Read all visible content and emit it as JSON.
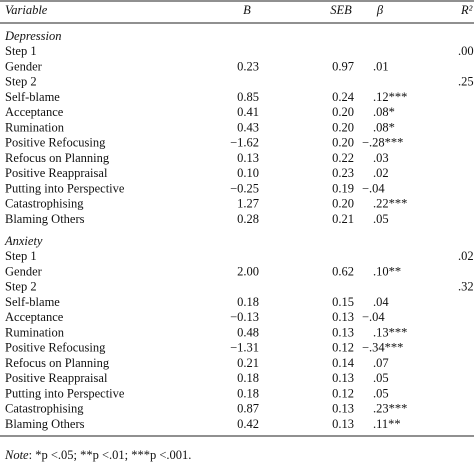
{
  "header": {
    "variable": "Variable",
    "b": "B",
    "seb": "SEB",
    "beta": "β",
    "r2": "R²"
  },
  "sections": [
    {
      "title": "Depression",
      "rows": [
        {
          "variable": "Step 1",
          "r2": ".00"
        },
        {
          "variable": "Gender",
          "b": "0.23",
          "seb": "0.97",
          "beta": ".01"
        },
        {
          "variable": "Step 2",
          "r2": ".25"
        },
        {
          "variable": "Self-blame",
          "b": "0.85",
          "seb": "0.24",
          "beta": ".12***"
        },
        {
          "variable": "Acceptance",
          "b": "0.41",
          "seb": "0.20",
          "beta": ".08*"
        },
        {
          "variable": "Rumination",
          "b": "0.43",
          "seb": "0.20",
          "beta": ".08*"
        },
        {
          "variable": "Positive Refocusing",
          "b": "−1.62",
          "seb": "0.20",
          "beta": "−.28***"
        },
        {
          "variable": "Refocus on Planning",
          "b": "0.13",
          "seb": "0.22",
          "beta": ".03"
        },
        {
          "variable": "Positive Reappraisal",
          "b": "0.10",
          "seb": "0.23",
          "beta": ".02"
        },
        {
          "variable": "Putting into Perspective",
          "b": "−0.25",
          "seb": "0.19",
          "beta": "−.04"
        },
        {
          "variable": "Catastrophising",
          "b": "1.27",
          "seb": "0.20",
          "beta": ".22***"
        },
        {
          "variable": "Blaming Others",
          "b": "0.28",
          "seb": "0.21",
          "beta": ".05"
        }
      ]
    },
    {
      "title": "Anxiety",
      "rows": [
        {
          "variable": "Step 1",
          "r2": ".02"
        },
        {
          "variable": "Gender",
          "b": "2.00",
          "seb": "0.62",
          "beta": ".10**"
        },
        {
          "variable": "Step 2",
          "r2": ".32"
        },
        {
          "variable": "Self-blame",
          "b": "0.18",
          "seb": "0.15",
          "beta": ".04"
        },
        {
          "variable": "Acceptance",
          "b": "−0.13",
          "seb": "0.13",
          "beta": "−.04"
        },
        {
          "variable": "Rumination",
          "b": "0.48",
          "seb": "0.13",
          "beta": ".13***"
        },
        {
          "variable": "Positive Refocusing",
          "b": "−1.31",
          "seb": "0.12",
          "beta": "−.34***"
        },
        {
          "variable": "Refocus on Planning",
          "b": "0.21",
          "seb": "0.14",
          "beta": ".07"
        },
        {
          "variable": "Positive Reappraisal",
          "b": "0.18",
          "seb": "0.13",
          "beta": ".05"
        },
        {
          "variable": "Putting into Perspective",
          "b": "0.18",
          "seb": "0.12",
          "beta": ".05"
        },
        {
          "variable": "Catastrophising",
          "b": "0.87",
          "seb": "0.13",
          "beta": ".23***"
        },
        {
          "variable": "Blaming Others",
          "b": "0.42",
          "seb": "0.13",
          "beta": ".11**"
        }
      ]
    }
  ],
  "note": {
    "label": "Note",
    "text": ": *p <.05; **p <.01; ***p <.001."
  }
}
